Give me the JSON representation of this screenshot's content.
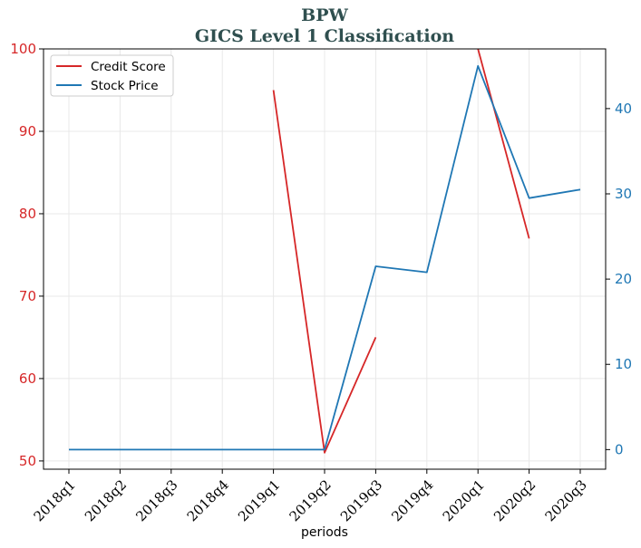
{
  "chart_data": {
    "type": "line",
    "title": "BPW",
    "subtitle": "GICS Level 1 Classification",
    "xlabel": "periods",
    "categories": [
      "2018q1",
      "2018q2",
      "2018q3",
      "2018q4",
      "2019q1",
      "2019q2",
      "2019q3",
      "2019q4",
      "2020q1",
      "2020q2",
      "2020q3"
    ],
    "left_axis": {
      "ylim": [
        49,
        100
      ],
      "ticks": [
        50,
        60,
        70,
        80,
        90,
        100
      ],
      "color": "#d62728"
    },
    "right_axis": {
      "ylim": [
        -2.3,
        47
      ],
      "ticks": [
        0,
        10,
        20,
        30,
        40
      ],
      "color": "#1f77b4"
    },
    "series": [
      {
        "name": "Credit Score",
        "axis": "left",
        "color": "#d62728",
        "values": [
          null,
          null,
          null,
          null,
          95,
          51,
          65,
          null,
          100,
          77,
          null
        ]
      },
      {
        "name": "Stock Price",
        "axis": "right",
        "color": "#1f77b4",
        "values": [
          0,
          0,
          0,
          0,
          0,
          0,
          21.5,
          20.8,
          45,
          29.5,
          30.5
        ]
      }
    ],
    "grid": true,
    "legend_position": "top-left"
  }
}
